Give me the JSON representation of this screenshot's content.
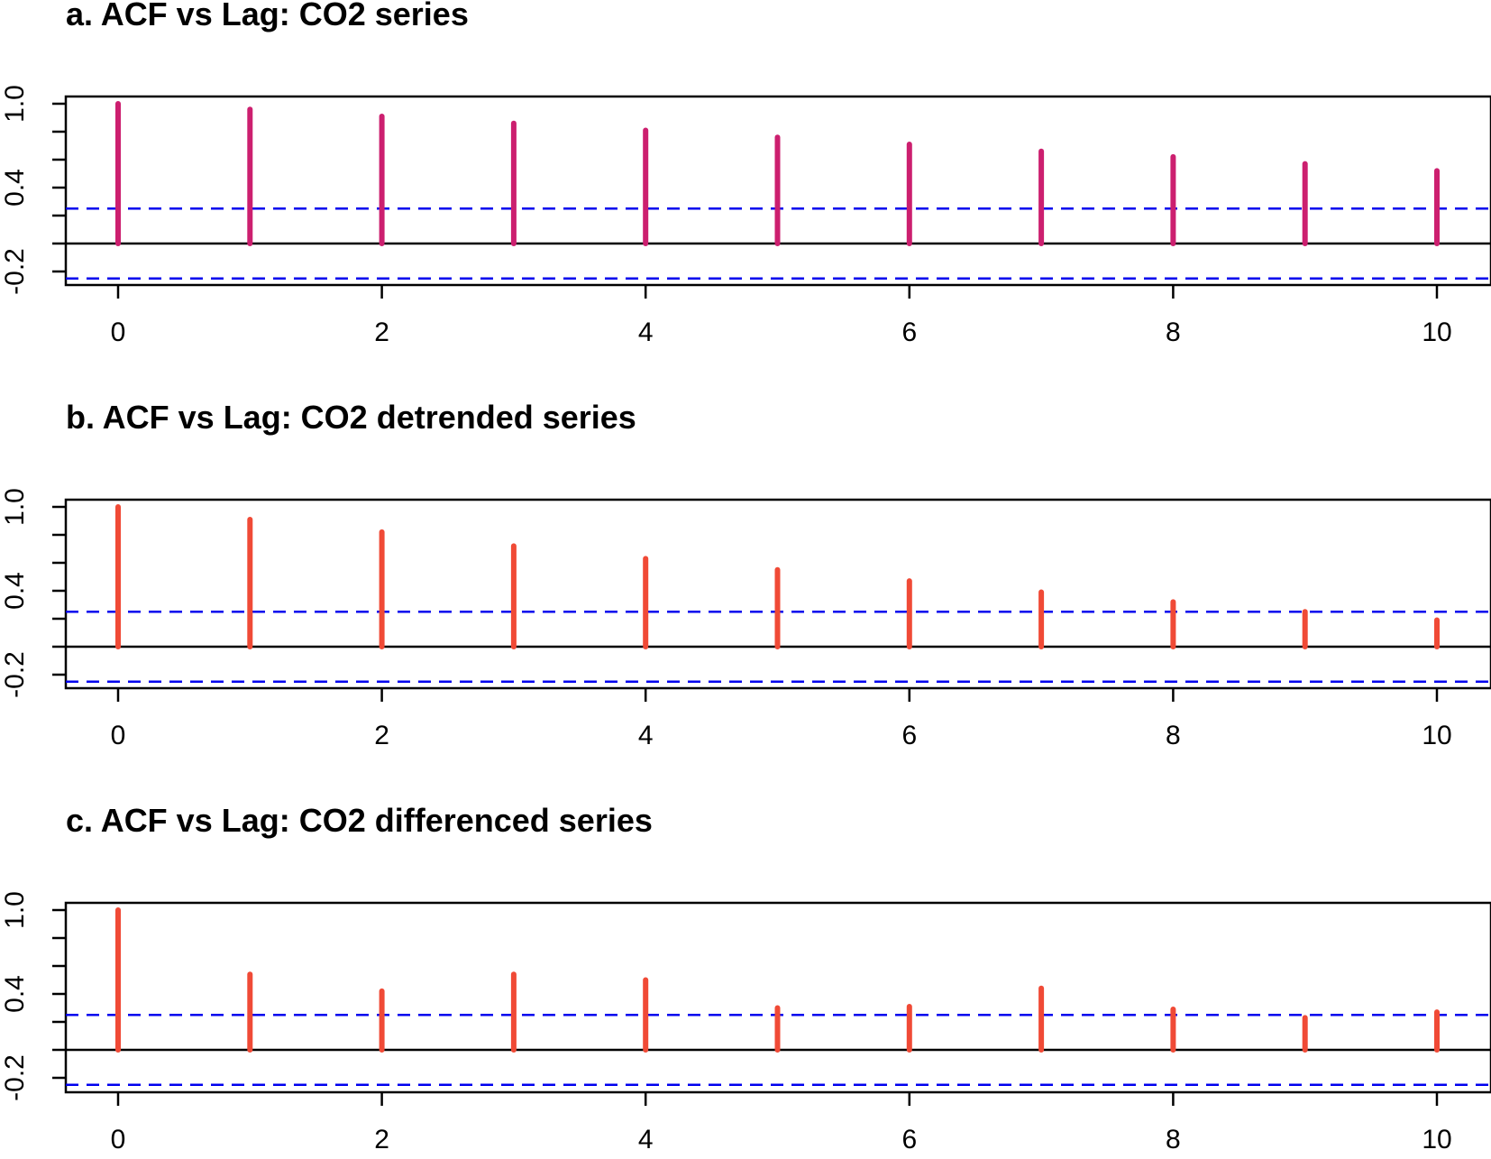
{
  "chart_data": [
    {
      "type": "bar",
      "title": "a. ACF vs Lag: CO2 series",
      "xlabel": "",
      "ylabel": "",
      "x": [
        0,
        1,
        2,
        3,
        4,
        5,
        6,
        7,
        8,
        9,
        10
      ],
      "values": [
        1.0,
        0.96,
        0.91,
        0.86,
        0.81,
        0.76,
        0.71,
        0.66,
        0.62,
        0.57,
        0.52
      ],
      "xticks": [
        "0",
        "2",
        "4",
        "6",
        "8",
        "10"
      ],
      "yticks": [
        "-0.2",
        "0.4",
        "1.0"
      ],
      "ylim": [
        -0.3,
        1.05
      ],
      "conf_upper": 0.25,
      "conf_lower": -0.25,
      "bar_color": "#cc1f6f",
      "conf_color": "#0000ee"
    },
    {
      "type": "bar",
      "title": "b. ACF vs Lag: CO2 detrended series",
      "xlabel": "",
      "ylabel": "",
      "x": [
        0,
        1,
        2,
        3,
        4,
        5,
        6,
        7,
        8,
        9,
        10
      ],
      "values": [
        1.0,
        0.91,
        0.82,
        0.72,
        0.63,
        0.55,
        0.47,
        0.39,
        0.32,
        0.25,
        0.19
      ],
      "xticks": [
        "0",
        "2",
        "4",
        "6",
        "8",
        "10"
      ],
      "yticks": [
        "-0.2",
        "0.4",
        "1.0"
      ],
      "ylim": [
        -0.3,
        1.05
      ],
      "conf_upper": 0.25,
      "conf_lower": -0.25,
      "bar_color": "#f04a36",
      "conf_color": "#0000ee"
    },
    {
      "type": "bar",
      "title": "c. ACF vs Lag: CO2 differenced series",
      "xlabel": "",
      "ylabel": "",
      "x": [
        0,
        1,
        2,
        3,
        4,
        5,
        6,
        7,
        8,
        9,
        10
      ],
      "values": [
        1.0,
        0.54,
        0.42,
        0.54,
        0.5,
        0.3,
        0.31,
        0.44,
        0.29,
        0.23,
        0.27
      ],
      "xticks": [
        "0",
        "2",
        "4",
        "6",
        "8",
        "10"
      ],
      "yticks": [
        "-0.2",
        "0.4",
        "1.0"
      ],
      "ylim": [
        -0.3,
        1.05
      ],
      "conf_upper": 0.25,
      "conf_lower": -0.25,
      "bar_color": "#f04a36",
      "conf_color": "#0000ee"
    }
  ]
}
